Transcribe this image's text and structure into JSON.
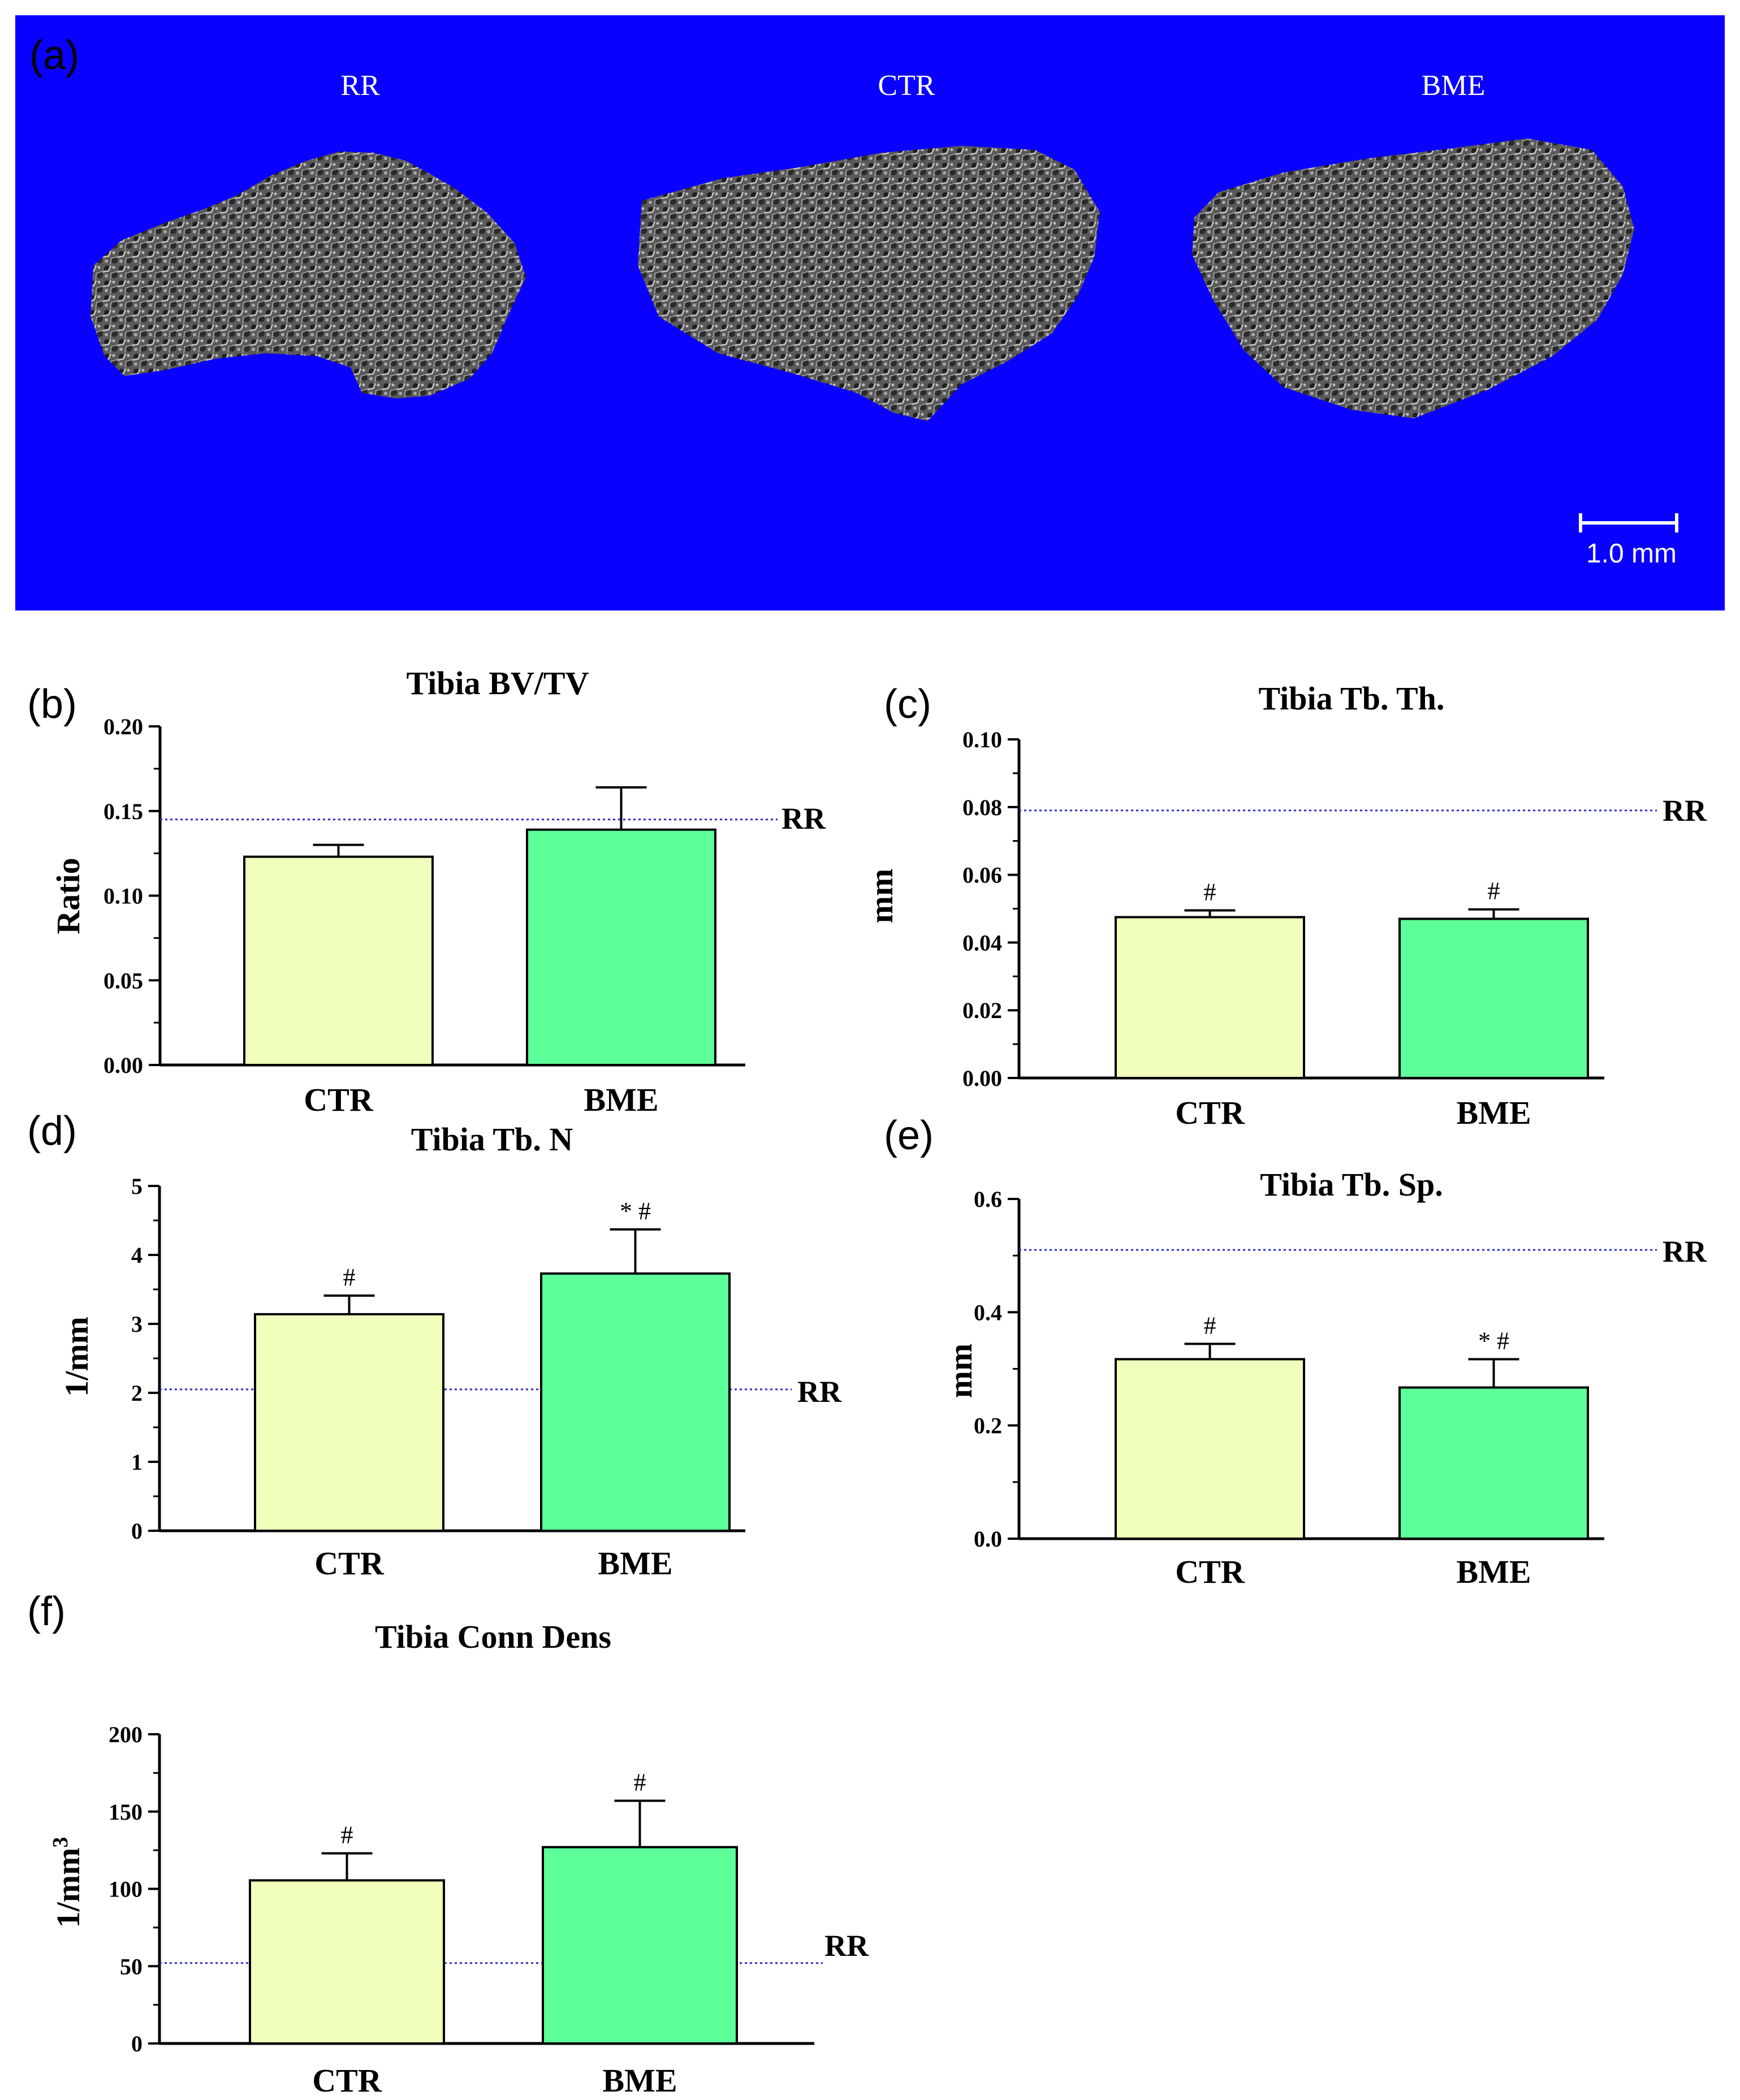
{
  "panel_a": {
    "letter": "(a)",
    "labels": [
      "RR",
      "CTR",
      "BME"
    ],
    "scale_bar": "1.0 mm",
    "background_color": "#0A00FF"
  },
  "colors": {
    "ctr": "#EFFFBB",
    "bme": "#5CFF98",
    "rr_line": "#2B2BCC"
  },
  "chart_data": [
    {
      "id": "b",
      "letter": "(b)",
      "type": "bar",
      "title": "Tibia BV/TV",
      "ylabel": "Ratio",
      "ylabel_sup": "",
      "categories": [
        "CTR",
        "BME"
      ],
      "values": [
        0.123,
        0.139
      ],
      "errors": [
        0.007,
        0.025
      ],
      "sig": [
        "",
        ""
      ],
      "ylim": [
        0,
        0.2
      ],
      "yticks": [
        0.0,
        0.05,
        0.1,
        0.15,
        0.2
      ],
      "tick_labels": [
        "0.00",
        "0.05",
        "0.10",
        "0.15",
        "0.20"
      ],
      "rr": 0.145,
      "rr_label": "RR"
    },
    {
      "id": "c",
      "letter": "(c)",
      "type": "bar",
      "title": "Tibia Tb. Th.",
      "ylabel": "mm",
      "ylabel_sup": "",
      "categories": [
        "CTR",
        "BME"
      ],
      "values": [
        0.0475,
        0.047
      ],
      "errors": [
        0.002,
        0.0028
      ],
      "sig": [
        "#",
        "#"
      ],
      "ylim": [
        0,
        0.1
      ],
      "yticks": [
        0.0,
        0.02,
        0.04,
        0.06,
        0.08,
        0.1
      ],
      "tick_labels": [
        "0.00",
        "0.02",
        "0.04",
        "0.06",
        "0.08",
        "0.10"
      ],
      "rr": 0.079,
      "rr_label": "RR"
    },
    {
      "id": "d",
      "letter": "(d)",
      "type": "bar",
      "title": "Tibia Tb. N",
      "ylabel": "1/mm",
      "ylabel_sup": "",
      "categories": [
        "CTR",
        "BME"
      ],
      "values": [
        3.14,
        3.73
      ],
      "errors": [
        0.27,
        0.64
      ],
      "sig": [
        "#",
        "* #"
      ],
      "ylim": [
        0,
        5
      ],
      "yticks": [
        0,
        1,
        2,
        3,
        4,
        5
      ],
      "tick_labels": [
        "0",
        "1",
        "2",
        "3",
        "4",
        "5"
      ],
      "rr": 2.05,
      "rr_label": "RR"
    },
    {
      "id": "e",
      "letter": "(e)",
      "type": "bar",
      "title": "Tibia Tb. Sp.",
      "ylabel": "mm",
      "ylabel_sup": "",
      "categories": [
        "CTR",
        "BME"
      ],
      "values": [
        0.317,
        0.267
      ],
      "errors": [
        0.027,
        0.05
      ],
      "sig": [
        "#",
        "* #"
      ],
      "ylim": [
        0,
        0.6
      ],
      "yticks": [
        0.0,
        0.2,
        0.4,
        0.6
      ],
      "tick_labels": [
        "0.0",
        "0.2",
        "0.4",
        "0.6"
      ],
      "rr": 0.51,
      "rr_label": "RR"
    },
    {
      "id": "f",
      "letter": "(f)",
      "type": "bar",
      "title": "Tibia Conn Dens",
      "ylabel": "1/mm",
      "ylabel_sup": "3",
      "categories": [
        "CTR",
        "BME"
      ],
      "values": [
        105.5,
        127
      ],
      "errors": [
        17.5,
        30
      ],
      "sig": [
        "#",
        "#"
      ],
      "ylim": [
        0,
        200
      ],
      "yticks": [
        0,
        50,
        100,
        150,
        200
      ],
      "tick_labels": [
        "0",
        "50",
        "100",
        "150",
        "200"
      ],
      "rr": 52,
      "rr_label": "RR"
    }
  ]
}
